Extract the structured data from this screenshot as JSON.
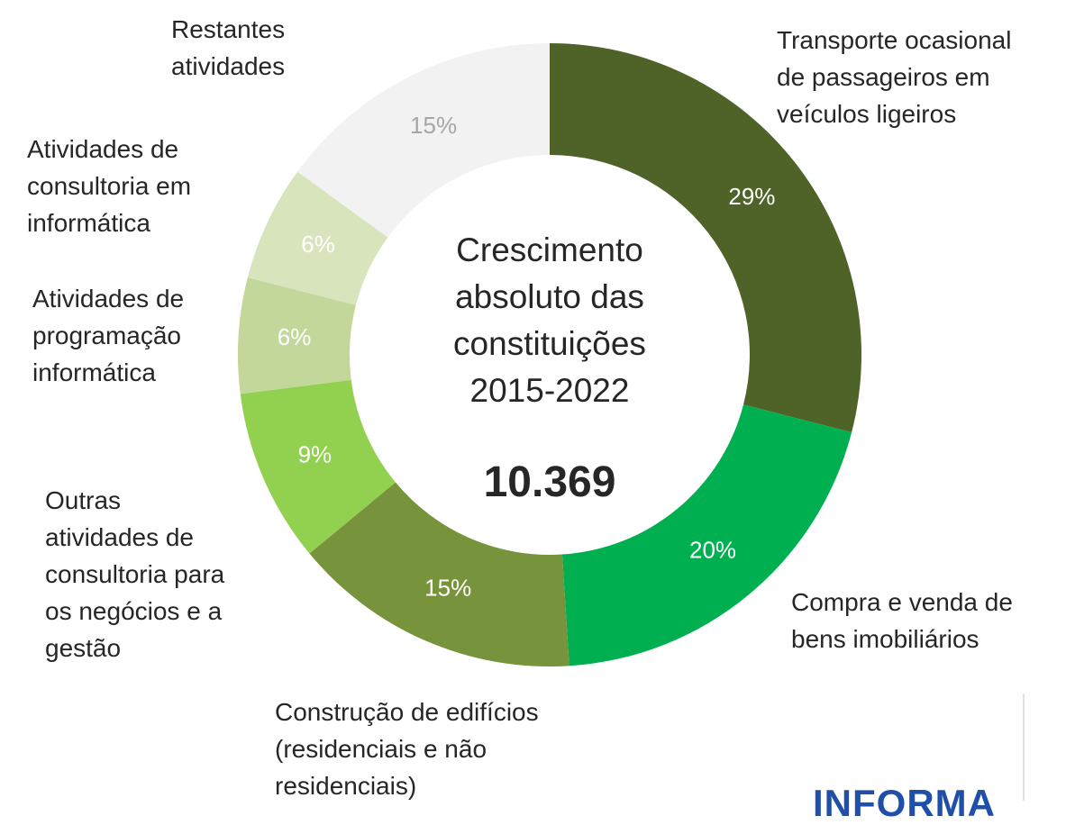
{
  "chart_data": {
    "type": "donut",
    "center_text": "Crescimento\nabsoluto das\nconstituições\n2015-2022",
    "total_label": "10.369",
    "categories": [
      "Transporte ocasional\nde passageiros em\nveículos ligeiros",
      "Compra e venda de\nbens imobiliários",
      "Construção de edifícios\n(residenciais e não\nresidenciais)",
      "Outras\natividades de\nconsultoria para\nos negócios e a\ngestão",
      "Atividades de\nprogramação\ninformática",
      "Atividades de\nconsultoria em\ninformática",
      "Restantes\natividades"
    ],
    "values": [
      29,
      20,
      15,
      9,
      6,
      6,
      15
    ],
    "value_labels": [
      "29%",
      "20%",
      "15%",
      "9%",
      "6%",
      "6%",
      "15%"
    ],
    "colors": [
      "#4f6228",
      "#00b050",
      "#77933c",
      "#92d050",
      "#c4d79b",
      "#d8e4bc",
      "#f2f2f2"
    ],
    "value_label_colors": [
      "#ffffff",
      "#ffffff",
      "#ffffff",
      "#ffffff",
      "#ffffff",
      "#ffffff",
      "#a6a6a6"
    ]
  },
  "logo": "INFORMA"
}
